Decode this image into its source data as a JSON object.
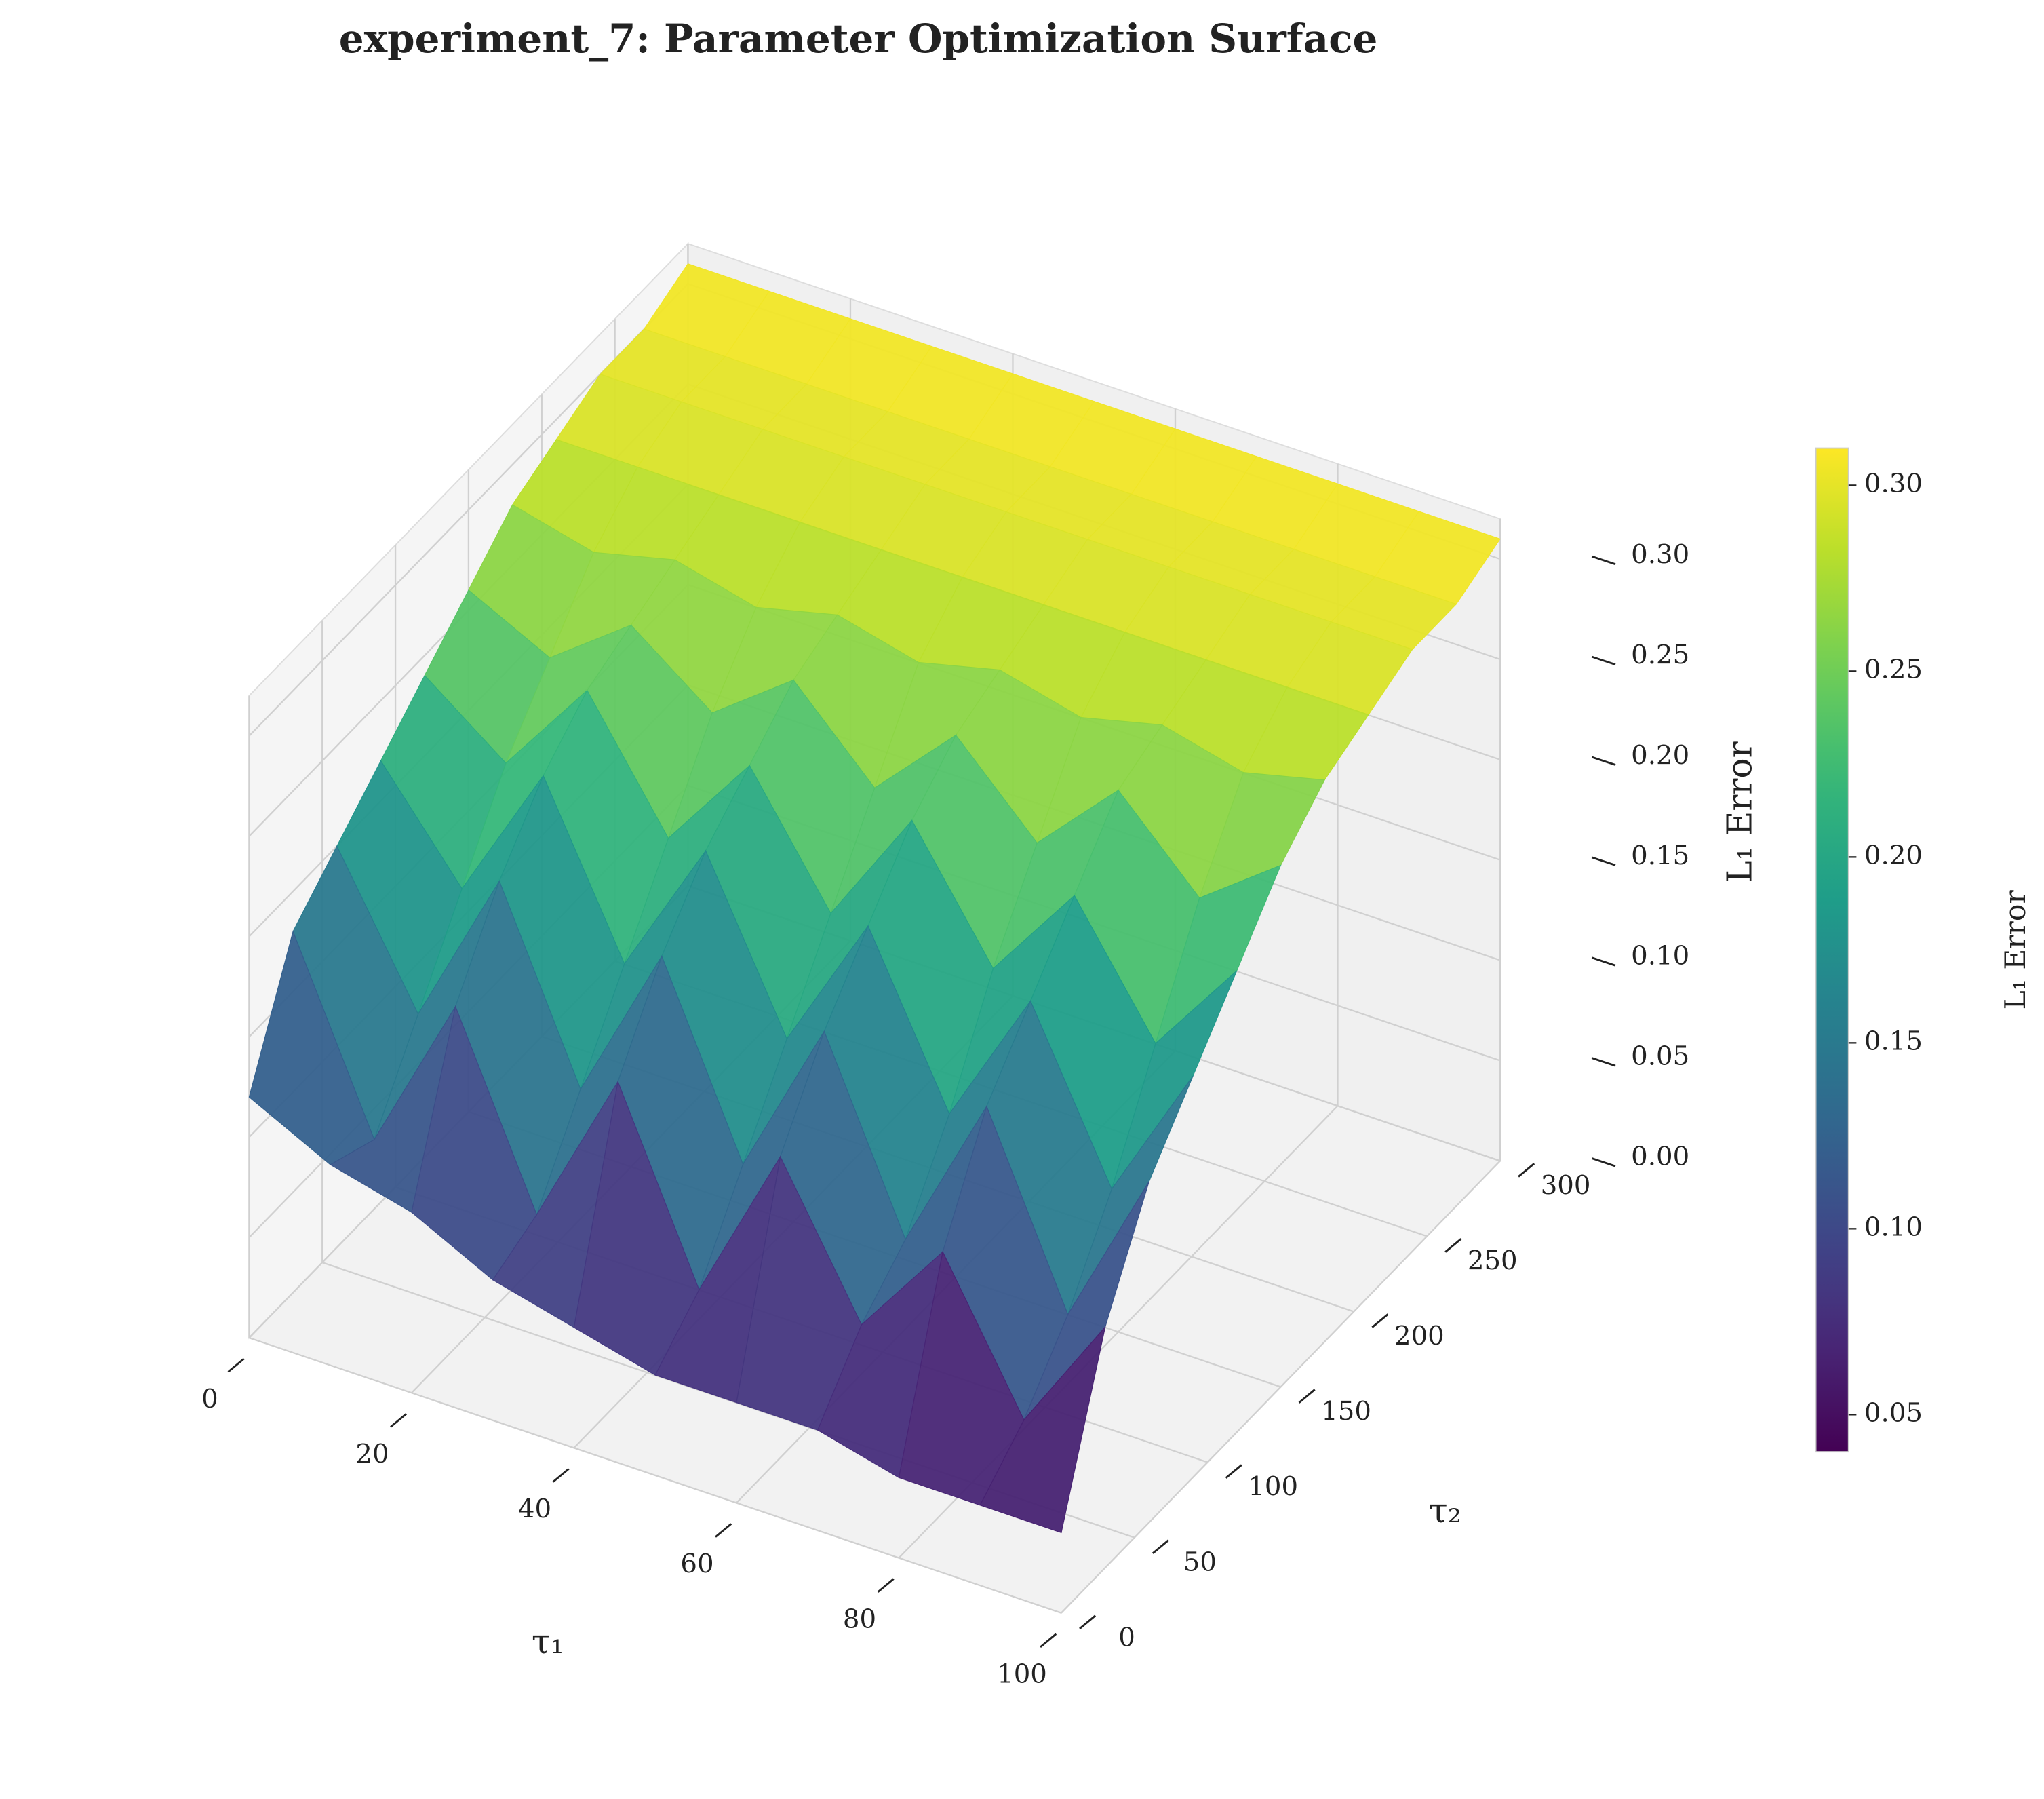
{
  "chart_data": {
    "type": "surface",
    "title": "experiment_7: Parameter Optimization Surface",
    "xlabel": "τ₁",
    "ylabel": "τ₂",
    "zlabel": "L₁ Error",
    "colorbar_label": "L₁ Error",
    "colormap": "viridis",
    "x": [
      0,
      10,
      20,
      30,
      40,
      50,
      60,
      70,
      80,
      90,
      100
    ],
    "y": [
      0,
      30,
      60,
      90,
      120,
      150,
      180,
      210,
      240,
      270,
      300
    ],
    "z": [
      [
        0.12,
        0.1,
        0.09,
        0.07,
        0.06,
        0.05,
        0.05,
        0.05,
        0.04,
        0.04,
        0.04
      ],
      [
        0.18,
        0.09,
        0.17,
        0.08,
        0.16,
        0.07,
        0.15,
        0.08,
        0.13,
        0.06,
        0.12
      ],
      [
        0.2,
        0.13,
        0.21,
        0.12,
        0.2,
        0.11,
        0.19,
        0.1,
        0.18,
        0.09,
        0.17
      ],
      [
        0.22,
        0.17,
        0.24,
        0.16,
        0.23,
        0.15,
        0.22,
        0.14,
        0.21,
        0.13,
        0.2
      ],
      [
        0.24,
        0.21,
        0.26,
        0.2,
        0.25,
        0.19,
        0.25,
        0.19,
        0.24,
        0.18,
        0.23
      ],
      [
        0.26,
        0.24,
        0.27,
        0.24,
        0.27,
        0.23,
        0.27,
        0.23,
        0.27,
        0.23,
        0.26
      ],
      [
        0.28,
        0.27,
        0.28,
        0.27,
        0.28,
        0.27,
        0.28,
        0.27,
        0.28,
        0.27,
        0.28
      ],
      [
        0.29,
        0.29,
        0.29,
        0.29,
        0.29,
        0.29,
        0.29,
        0.29,
        0.29,
        0.29,
        0.29
      ],
      [
        0.3,
        0.3,
        0.3,
        0.3,
        0.3,
        0.3,
        0.3,
        0.3,
        0.3,
        0.3,
        0.3
      ],
      [
        0.3,
        0.3,
        0.3,
        0.3,
        0.3,
        0.3,
        0.3,
        0.3,
        0.3,
        0.3,
        0.3
      ],
      [
        0.31,
        0.31,
        0.31,
        0.31,
        0.31,
        0.31,
        0.31,
        0.31,
        0.31,
        0.31,
        0.31
      ]
    ],
    "xlim": [
      0,
      100
    ],
    "ylim": [
      0,
      300
    ],
    "zlim": [
      0,
      0.32
    ],
    "xticks": [
      0,
      20,
      40,
      60,
      80,
      100
    ],
    "yticks": [
      0,
      50,
      100,
      150,
      200,
      250,
      300
    ],
    "zticks": [
      {
        "value": 0,
        "label": "0.00"
      },
      0.05,
      {
        "value": 0.1,
        "label": "0.10"
      },
      0.15,
      {
        "value": 0.2,
        "label": "0.20"
      },
      0.25,
      {
        "value": 0.3,
        "label": "0.30"
      }
    ],
    "colorbar_ticks": [
      0.05,
      {
        "value": 0.1,
        "label": "0.10"
      },
      0.15,
      {
        "value": 0.2,
        "label": "0.20"
      },
      0.25,
      {
        "value": 0.3,
        "label": "0.30"
      }
    ],
    "grid": true
  }
}
